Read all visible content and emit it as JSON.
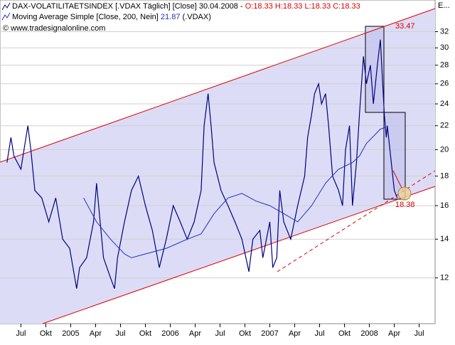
{
  "chart_data": {
    "type": "line",
    "title": "DAX-VOLATILITAETSINDEX [.VDAX  Täglich] [Close] 30.04.2008 -",
    "ohlc": "O:18.33 H:18.33 L:18.33 C:18.33",
    "ma_value": "21.87",
    "ma_suffix": "(.VDAX)",
    "copyright": "© www.tradesignalonline.com",
    "corner_label": "E...",
    "annotations": [
      "33.47",
      "18.38"
    ],
    "log_y": true,
    "grid": true,
    "xlim": [
      2004.29,
      2008.66
    ],
    "xticks": [
      {
        "value": 2004.5,
        "label": "Jul"
      },
      {
        "value": 2004.75,
        "label": "Okt"
      },
      2005,
      {
        "value": 2005.25,
        "label": "Apr"
      },
      {
        "value": 2005.5,
        "label": "Jul"
      },
      {
        "value": 2005.75,
        "label": "Okt"
      },
      2006,
      {
        "value": 2006.25,
        "label": "Apr"
      },
      {
        "value": 2006.5,
        "label": "Jul"
      },
      {
        "value": 2006.75,
        "label": "Okt"
      },
      2007,
      {
        "value": 2007.25,
        "label": "Apr"
      },
      {
        "value": 2007.5,
        "label": "Jul"
      },
      {
        "value": 2007.75,
        "label": "Okt"
      },
      2008,
      {
        "value": 2008.25,
        "label": "Apr"
      },
      {
        "value": 2008.5,
        "label": "Jul"
      }
    ],
    "ylim": [
      10,
      36.3
    ],
    "yticks": [
      12,
      14,
      16,
      18,
      20,
      22,
      24,
      26,
      28,
      30,
      32
    ],
    "series": [
      {
        "name": "DAX-VOLATILITAETSINDEX",
        "color": "#000080",
        "x": [
          2004.36,
          2004.4,
          2004.43,
          2004.5,
          2004.57,
          2004.6,
          2004.64,
          2004.71,
          2004.78,
          2004.85,
          2004.92,
          2004.99,
          2005.06,
          2005.09,
          2005.16,
          2005.23,
          2005.26,
          2005.33,
          2005.4,
          2005.44,
          2005.47,
          2005.54,
          2005.61,
          2005.68,
          2005.75,
          2005.82,
          2005.89,
          2005.96,
          2006.03,
          2006.1,
          2006.17,
          2006.24,
          2006.31,
          2006.34,
          2006.38,
          2006.41,
          2006.44,
          2006.51,
          2006.58,
          2006.65,
          2006.72,
          2006.76,
          2006.79,
          2006.83,
          2006.9,
          2006.93,
          2007.0,
          2007.03,
          2007.07,
          2007.1,
          2007.14,
          2007.21,
          2007.28,
          2007.35,
          2007.38,
          2007.42,
          2007.45,
          2007.49,
          2007.52,
          2007.56,
          2007.59,
          2007.63,
          2007.69,
          2007.73,
          2007.76,
          2007.8,
          2007.83,
          2007.87,
          2007.9,
          2007.94,
          2007.97,
          2008.01,
          2008.04,
          2008.08,
          2008.11,
          2008.15,
          2008.17,
          2008.18,
          2008.22,
          2008.25,
          2008.28
        ],
        "values": [
          19,
          21,
          19.5,
          18.5,
          22,
          20,
          17,
          16.5,
          15,
          16.5,
          14,
          13.5,
          11.5,
          12.5,
          13,
          15,
          17.5,
          13,
          12,
          11.5,
          13,
          15,
          17,
          18,
          16,
          14.5,
          12.5,
          14,
          16,
          15,
          14,
          15,
          17,
          22,
          25,
          22,
          19,
          17,
          16,
          15,
          14,
          13,
          12.3,
          14,
          14.5,
          13,
          15,
          12.5,
          13,
          17,
          15,
          14,
          16,
          18,
          21,
          23,
          25,
          26,
          24,
          25,
          22,
          18,
          17,
          16,
          20,
          22,
          16,
          19,
          23,
          29,
          26,
          28,
          24,
          28,
          31,
          23,
          21,
          22,
          19,
          17,
          16.5
        ]
      },
      {
        "name": "Moving Average Simple [Close, 200, Nein]",
        "color": "#2030c0",
        "x": [
          2005.13,
          2005.26,
          2005.4,
          2005.54,
          2005.61,
          2005.75,
          2005.96,
          2006.17,
          2006.31,
          2006.44,
          2006.58,
          2006.72,
          2006.86,
          2007.0,
          2007.14,
          2007.28,
          2007.42,
          2007.56,
          2007.69,
          2007.83,
          2007.9,
          2007.97,
          2008.11,
          2008.17
        ],
        "values": [
          16.5,
          15,
          14,
          13.2,
          13,
          13.2,
          13.5,
          14,
          14.3,
          15.5,
          16.5,
          16.8,
          16.3,
          16,
          15.5,
          15,
          16,
          17.5,
          18.5,
          19,
          19.5,
          20.5,
          21.7,
          21.9
        ]
      }
    ]
  }
}
